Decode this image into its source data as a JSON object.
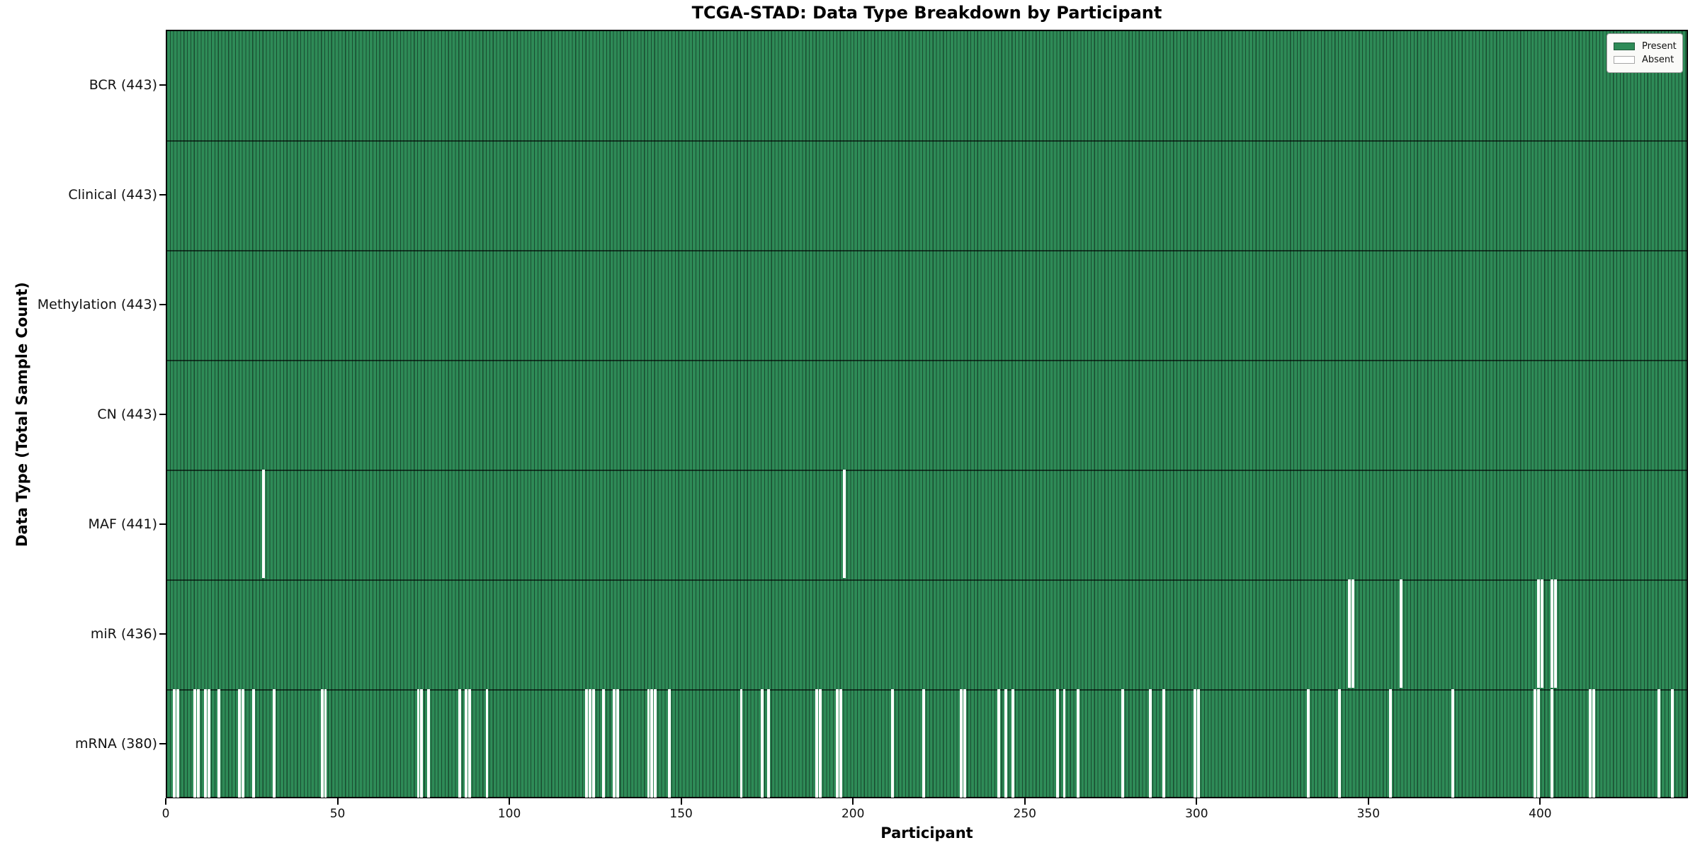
{
  "title": "TCGA-STAD: Data Type Breakdown by Participant",
  "xaxis_title": "Participant",
  "yaxis_title": "Data Type (Total Sample Count)",
  "legend": {
    "entries": [
      {
        "label": "Present",
        "color": "#2e8b57"
      },
      {
        "label": "Absent",
        "color": "#ffffff"
      }
    ]
  },
  "colors": {
    "present": "#2e8b57",
    "absent": "#ffffff",
    "cell_edge": "rgba(0,0,0,0.45)",
    "row_separator": "rgba(0,0,0,0.6)",
    "axis_spine": "#000000"
  },
  "chart_data": {
    "type": "heatmap",
    "title": "TCGA-STAD: Data Type Breakdown by Participant",
    "xlabel": "Participant",
    "ylabel": "Data Type (Total Sample Count)",
    "legend_entries": [
      "Present",
      "Absent"
    ],
    "legend_position": "upper right",
    "n_participants": 443,
    "x_ticks": [
      0,
      50,
      100,
      150,
      200,
      250,
      300,
      350,
      400
    ],
    "cell_values": {
      "present": 1,
      "absent": 0
    },
    "rows": [
      {
        "label": "BCR (443)",
        "data_type": "BCR",
        "total_count": 443,
        "absent_participants": []
      },
      {
        "label": "Clinical (443)",
        "data_type": "Clinical",
        "total_count": 443,
        "absent_participants": []
      },
      {
        "label": "Methylation (443)",
        "data_type": "Methylation",
        "total_count": 443,
        "absent_participants": []
      },
      {
        "label": "CN (443)",
        "data_type": "CN",
        "total_count": 443,
        "absent_participants": []
      },
      {
        "label": "MAF (441)",
        "data_type": "MAF",
        "total_count": 441,
        "absent_participants": [
          28,
          197
        ]
      },
      {
        "label": "miR (436)",
        "data_type": "miR",
        "total_count": 436,
        "absent_participants": [
          344,
          345,
          359,
          399,
          400,
          403,
          404
        ]
      },
      {
        "label": "mRNA (380)",
        "data_type": "mRNA",
        "total_count": 380,
        "absent_participants": [
          2,
          3,
          8,
          9,
          11,
          12,
          15,
          21,
          22,
          25,
          31,
          45,
          46,
          73,
          74,
          76,
          85,
          87,
          88,
          93,
          122,
          123,
          124,
          127,
          130,
          131,
          140,
          141,
          142,
          146,
          167,
          173,
          175,
          189,
          190,
          195,
          196,
          211,
          220,
          231,
          232,
          242,
          244,
          246,
          259,
          261,
          265,
          278,
          286,
          290,
          299,
          300,
          332,
          341,
          356,
          374,
          398,
          399,
          403,
          414,
          415,
          434,
          438
        ]
      }
    ]
  }
}
